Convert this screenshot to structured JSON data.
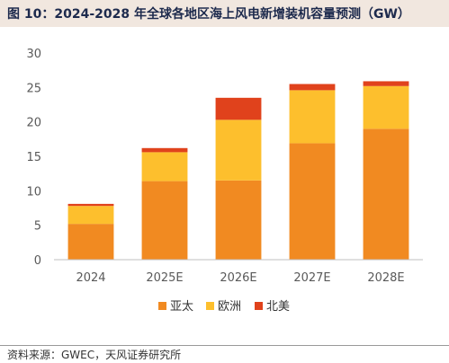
{
  "figure": {
    "title": "图 10：2024-2028 年全球各地区海上风电新增装机容量预测（GW）",
    "source": "资料来源：GWEC，天风证券研究所"
  },
  "chart_data": {
    "type": "bar",
    "stacked": true,
    "categories": [
      "2024",
      "2025E",
      "2026E",
      "2027E",
      "2028E"
    ],
    "series": [
      {
        "name": "亚太",
        "color": "#F18A21",
        "values": [
          5.2,
          11.4,
          11.5,
          16.9,
          19.0
        ]
      },
      {
        "name": "欧洲",
        "color": "#FDBF2D",
        "values": [
          2.6,
          4.2,
          8.8,
          7.7,
          6.2
        ]
      },
      {
        "name": "北美",
        "color": "#E0421C",
        "values": [
          0.3,
          0.6,
          3.2,
          0.9,
          0.7
        ]
      }
    ],
    "yticks": [
      "0",
      "5",
      "10",
      "15",
      "20",
      "25",
      "30"
    ],
    "ylim": [
      0,
      30
    ],
    "grid": false,
    "legend_position": "bottom"
  }
}
